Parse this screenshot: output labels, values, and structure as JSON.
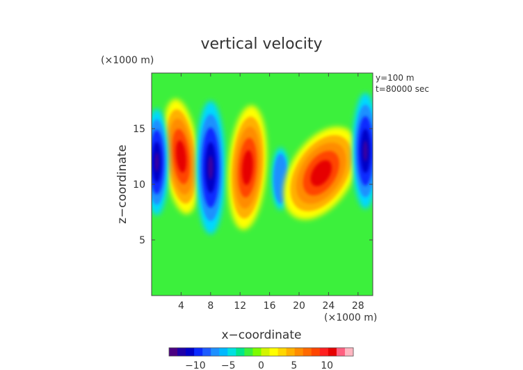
{
  "chart_data": {
    "type": "heatmap",
    "title": "vertical velocity",
    "xlabel": "x−coordinate",
    "ylabel": "z−coordinate",
    "x_unit": "(×1000 m)",
    "y_unit": "(×1000 m)",
    "annotations": [
      "y=100 m",
      "t=80000 sec"
    ],
    "xlim": [
      0,
      30
    ],
    "ylim": [
      0,
      20
    ],
    "x_ticks": [
      4,
      8,
      12,
      16,
      20,
      24,
      28
    ],
    "y_ticks": [
      5,
      10,
      15
    ],
    "x_tick_labels": [
      "4",
      "8",
      "12",
      "16",
      "20",
      "24",
      "28"
    ],
    "y_tick_labels": [
      "5",
      "10",
      "15"
    ],
    "colorbar": {
      "min": -14,
      "max": 14,
      "ticks": [
        -10,
        -5,
        0,
        5,
        10
      ],
      "tick_labels": [
        "−10",
        "−5",
        "0",
        "5",
        "10"
      ],
      "colors": [
        "#4b0082",
        "#1f00a8",
        "#0000c8",
        "#0a2aff",
        "#1e5cff",
        "#1e90ff",
        "#00b8ff",
        "#00e0e0",
        "#00e68c",
        "#3cf03c",
        "#7cfc00",
        "#d2f500",
        "#ffff00",
        "#ffd700",
        "#ffb000",
        "#ff8c00",
        "#ff6a00",
        "#ff4500",
        "#ff2020",
        "#e60000",
        "#ff6080",
        "#ffb6c1"
      ]
    },
    "features": [
      {
        "kind": "updraft",
        "x": 4,
        "z": 12.5,
        "value": 11
      },
      {
        "kind": "downdraft",
        "x": 8,
        "z": 11.5,
        "value": -11
      },
      {
        "kind": "updraft",
        "x": 13,
        "z": 11.5,
        "value": 12
      },
      {
        "kind": "downdraft",
        "x": 17.5,
        "z": 10.5,
        "value": -5
      },
      {
        "kind": "updraft",
        "x": 23,
        "z": 11,
        "value": 11
      },
      {
        "kind": "downdraft",
        "x": 0.7,
        "z": 12,
        "value": -10
      },
      {
        "kind": "downdraft",
        "x": 29,
        "z": 13,
        "value": -12
      }
    ]
  }
}
